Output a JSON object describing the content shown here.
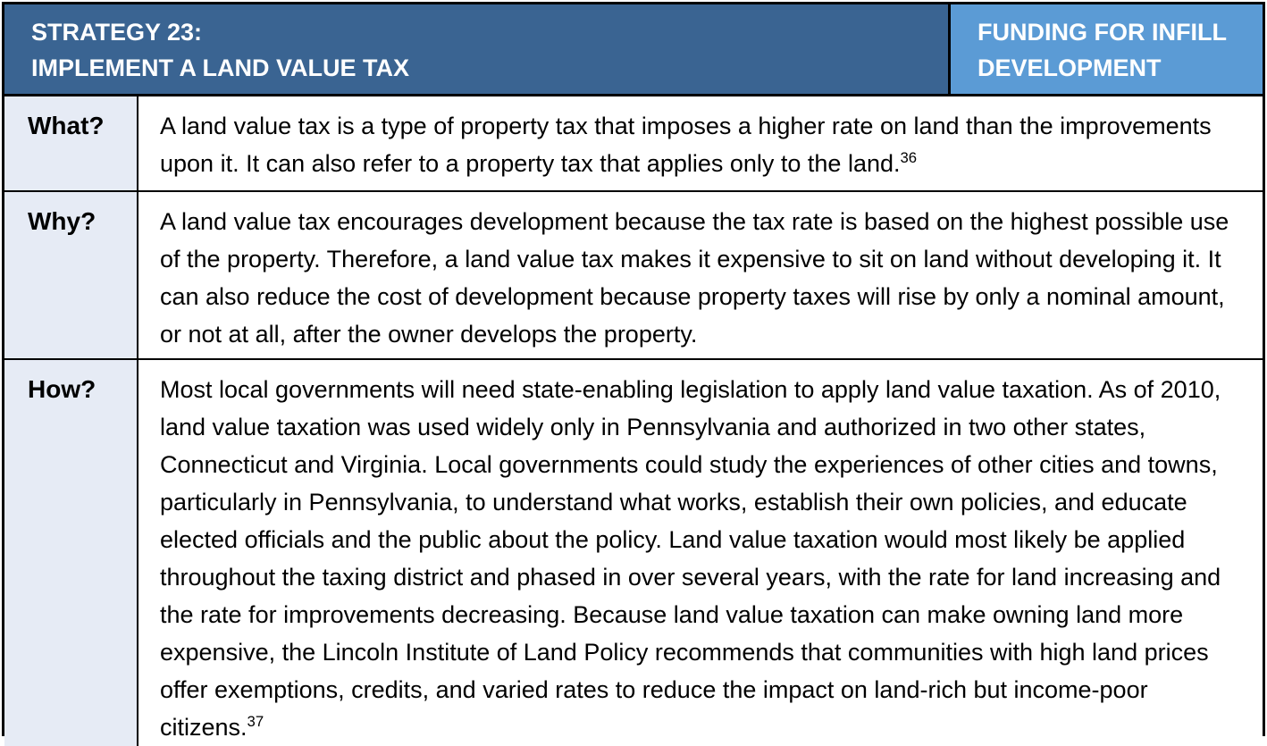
{
  "table": {
    "header": {
      "left": {
        "line1": "STRATEGY 23:",
        "line2": "IMPLEMENT A LAND VALUE TAX"
      },
      "right": {
        "line1": "FUNDING FOR INFILL",
        "line2": "DEVELOPMENT"
      }
    },
    "rows": [
      {
        "label": "What?",
        "text": "A land value tax is a type of property tax that imposes a higher rate on land than the improvements upon it. It can also refer to a property tax that applies only to the land.",
        "footnote": "36"
      },
      {
        "label": "Why?",
        "text": "A land value tax encourages development because the tax rate is based on the highest possible use of the property. Therefore, a land value tax makes it expensive to sit on land without developing it. It can also reduce the cost of development because property taxes will rise by only a nominal amount, or not at all, after the owner develops the property.",
        "footnote": ""
      },
      {
        "label": "How?",
        "text": "Most local governments will need state-enabling legislation to apply land value taxation. As of 2010, land value taxation was used widely only in Pennsylvania and authorized in two other states, Connecticut and Virginia. Local governments could study the experiences of other cities and towns, particularly in Pennsylvania, to understand what works, establish their own policies, and educate elected officials and the public about the policy. Land value taxation would most likely be applied throughout the taxing district and phased in over several years, with the rate for land increasing and the rate for improvements decreasing. Because land value taxation can make owning land more expensive, the Lincoln Institute of Land Policy recommends that communities with high land prices offer exemptions, credits, and varied rates to reduce the impact on land-rich but income-poor citizens.",
        "footnote": "37"
      }
    ],
    "colors": {
      "header_left_bg": "#3A6492",
      "header_right_bg": "#5B9BD5",
      "label_cell_bg": "#E6EBF5",
      "border": "#000000",
      "header_text": "#FFFFFF",
      "body_text": "#000000"
    }
  }
}
